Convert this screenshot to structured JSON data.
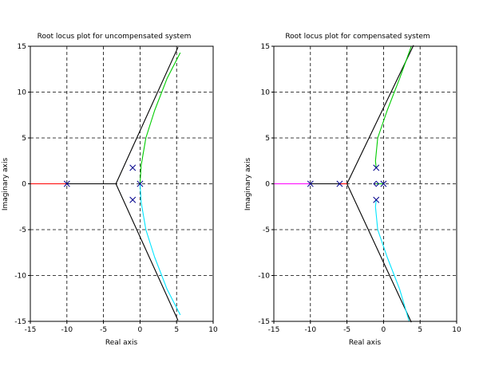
{
  "chart_data": [
    {
      "type": "line",
      "title": "Root locus plot for uncompensated system",
      "xlabel": "Real axis",
      "ylabel": "Imaginary axis",
      "xlim": [
        -15,
        10
      ],
      "ylim": [
        -15,
        15
      ],
      "xticks": [
        -15,
        -10,
        -5,
        0,
        5,
        10
      ],
      "yticks": [
        -15,
        -10,
        -5,
        0,
        5,
        10,
        15
      ],
      "grid": true,
      "series": [
        {
          "name": "asymptote-upper",
          "color": "#000000",
          "points": [
            [
              -3.3,
              0
            ],
            [
              5.2,
              14.9
            ]
          ]
        },
        {
          "name": "asymptote-lower",
          "color": "#000000",
          "points": [
            [
              -3.3,
              0
            ],
            [
              5.2,
              -14.9
            ]
          ]
        },
        {
          "name": "real-axis-segment",
          "color": "#000000",
          "points": [
            [
              -10,
              0
            ],
            [
              -3.3,
              0
            ]
          ]
        },
        {
          "name": "branch-left",
          "color": "#ff0000",
          "points": [
            [
              -15,
              0
            ],
            [
              -10,
              0
            ]
          ]
        },
        {
          "name": "branch-upper",
          "color": "#00cc00",
          "points": [
            [
              0,
              0
            ],
            [
              0.15,
              2
            ],
            [
              0.8,
              5
            ],
            [
              2,
              8
            ],
            [
              3.7,
              11.5
            ],
            [
              5.5,
              14.3
            ]
          ]
        },
        {
          "name": "branch-lower",
          "color": "#00e5ff",
          "points": [
            [
              0,
              0
            ],
            [
              0.15,
              -2
            ],
            [
              0.8,
              -5
            ],
            [
              2,
              -8
            ],
            [
              3.7,
              -11.5
            ],
            [
              5.5,
              -14.3
            ]
          ]
        }
      ],
      "poles": [
        [
          -10,
          0
        ],
        [
          -1,
          1.75
        ],
        [
          -1,
          -1.75
        ],
        [
          0,
          0
        ]
      ],
      "zeros": []
    },
    {
      "type": "line",
      "title": "Root locus plot for compensated system",
      "xlabel": "Real axis",
      "ylabel": "Imaginary axis",
      "xlim": [
        -15,
        10
      ],
      "ylim": [
        -15,
        15
      ],
      "xticks": [
        -15,
        -10,
        -5,
        0,
        5,
        10
      ],
      "yticks": [
        -15,
        -10,
        -5,
        0,
        5,
        10,
        15
      ],
      "grid": true,
      "series": [
        {
          "name": "asymptote-upper",
          "color": "#000000",
          "points": [
            [
              -5,
              0
            ],
            [
              4.1,
              15.1
            ]
          ]
        },
        {
          "name": "asymptote-lower",
          "color": "#000000",
          "points": [
            [
              -5,
              0
            ],
            [
              3.8,
              -15.1
            ]
          ]
        },
        {
          "name": "real-axis-segment",
          "color": "#000000",
          "points": [
            [
              -10,
              0
            ],
            [
              -5,
              0
            ]
          ]
        },
        {
          "name": "branch-left",
          "color": "#ff00ff",
          "points": [
            [
              -15,
              0
            ],
            [
              -10,
              0
            ]
          ]
        },
        {
          "name": "branch-pole-zero",
          "color": "#ff0000",
          "points": [
            [
              -6,
              0
            ],
            [
              -5,
              0
            ]
          ]
        },
        {
          "name": "branch-upper",
          "color": "#00cc00",
          "points": [
            [
              -1,
              1.75
            ],
            [
              -1.1,
              2.5
            ],
            [
              -0.8,
              5
            ],
            [
              0.5,
              8
            ],
            [
              2.2,
              11.5
            ],
            [
              3.8,
              15
            ]
          ]
        },
        {
          "name": "branch-lower",
          "color": "#00e5ff",
          "points": [
            [
              -1,
              -1.75
            ],
            [
              -1.1,
              -2.5
            ],
            [
              -0.8,
              -5
            ],
            [
              0.5,
              -8
            ],
            [
              2.2,
              -11.5
            ],
            [
              3.5,
              -15
            ]
          ]
        },
        {
          "name": "branch-break",
          "color": "#00cc00",
          "points": [
            [
              -1,
              0
            ],
            [
              -0.3,
              0
            ],
            [
              0,
              0
            ]
          ]
        }
      ],
      "poles": [
        [
          -10,
          0
        ],
        [
          -1,
          1.75
        ],
        [
          -1,
          -1.75
        ],
        [
          0,
          0
        ],
        [
          -6,
          0
        ]
      ],
      "zeros": [
        [
          -1,
          0
        ]
      ]
    }
  ]
}
